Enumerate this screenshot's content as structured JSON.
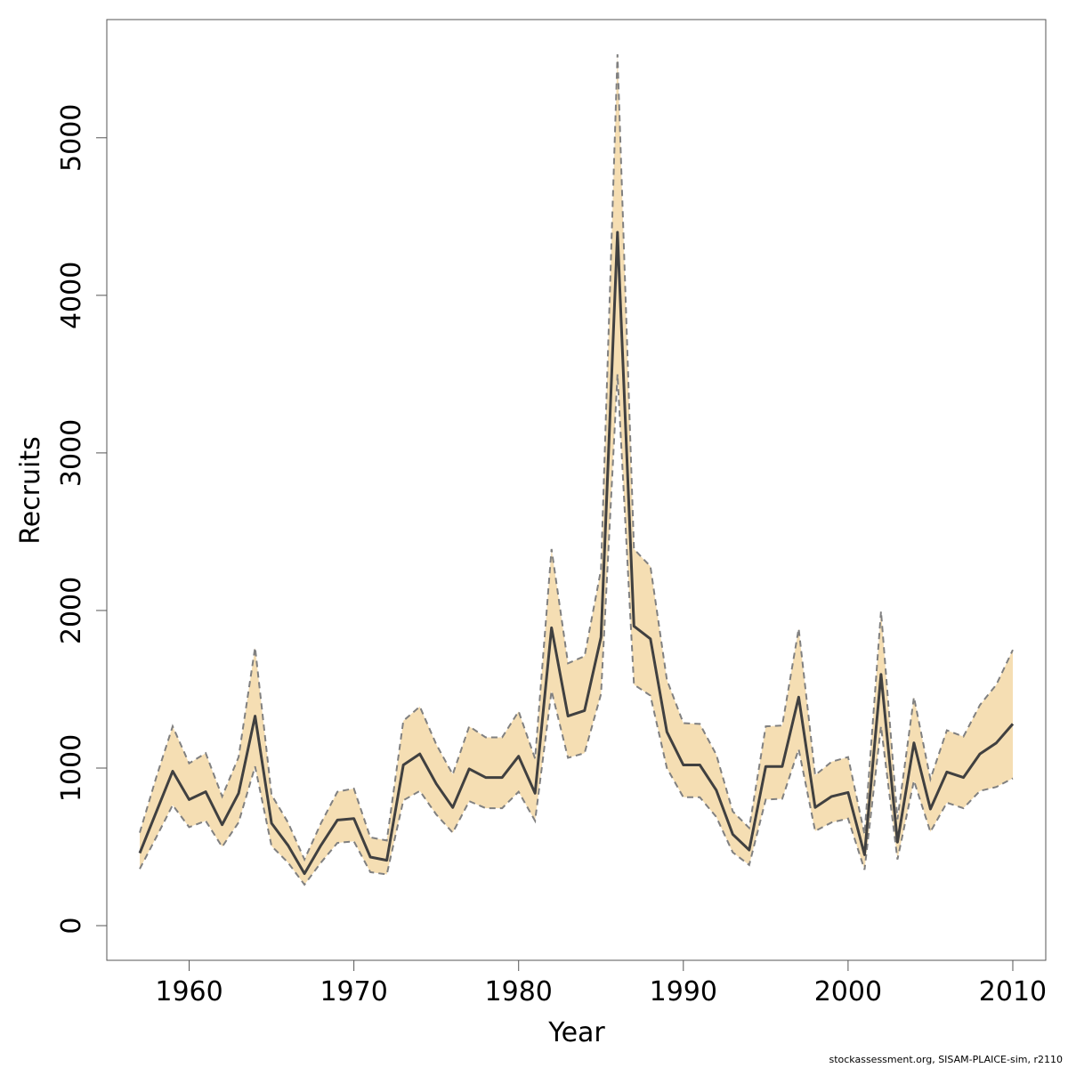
{
  "footer": {
    "source_text": "stockassessment.org, SISAM-PLAICE-sim, r2110"
  },
  "chart_data": {
    "type": "line",
    "xlabel": "Year",
    "ylabel": "Recruits",
    "xlim": [
      1955,
      2012
    ],
    "ylim": [
      -220,
      5750
    ],
    "x_ticks": [
      1960,
      1970,
      1980,
      1990,
      2000,
      2010
    ],
    "y_ticks": [
      0,
      1000,
      2000,
      3000,
      4000,
      5000
    ],
    "grid": false,
    "colors": {
      "band": "#f5deb3",
      "band_edge": "#808080",
      "line": "#404040",
      "axis": "#555555"
    },
    "x": [
      1957,
      1958,
      1959,
      1960,
      1961,
      1962,
      1963,
      1964,
      1965,
      1966,
      1967,
      1968,
      1969,
      1970,
      1971,
      1972,
      1973,
      1974,
      1975,
      1976,
      1977,
      1978,
      1979,
      1980,
      1981,
      1982,
      1983,
      1984,
      1985,
      1986,
      1987,
      1988,
      1989,
      1990,
      1991,
      1992,
      1993,
      1994,
      1995,
      1996,
      1997,
      1998,
      1999,
      2000,
      2001,
      2002,
      2003,
      2004,
      2005,
      2006,
      2007,
      2008,
      2009,
      2010
    ],
    "series": [
      {
        "values": [
          460,
          720,
          980,
          800,
          850,
          640,
          840,
          1330,
          650,
          510,
          330,
          510,
          670,
          680,
          435,
          415,
          1020,
          1090,
          900,
          750,
          995,
          940,
          940,
          1075,
          840,
          1890,
          1330,
          1365,
          1830,
          4400,
          1900,
          1820,
          1230,
          1020,
          1020,
          860,
          580,
          480,
          1010,
          1010,
          1450,
          750,
          820,
          845,
          450,
          1595,
          530,
          1160,
          740,
          975,
          940,
          1090,
          1160,
          1280
        ]
      },
      {
        "values": [
          590,
          940,
          1265,
          1030,
          1095,
          820,
          1070,
          1765,
          830,
          655,
          420,
          650,
          850,
          870,
          560,
          540,
          1300,
          1390,
          1150,
          960,
          1265,
          1195,
          1195,
          1360,
          1060,
          2390,
          1665,
          1710,
          2260,
          5530,
          2390,
          2280,
          1560,
          1285,
          1280,
          1085,
          725,
          620,
          1265,
          1270,
          1885,
          955,
          1040,
          1070,
          580,
          1995,
          675,
          1450,
          930,
          1240,
          1200,
          1400,
          1530,
          1750
        ]
      },
      {
        "values": [
          360,
          560,
          765,
          625,
          665,
          500,
          655,
          1010,
          505,
          400,
          260,
          400,
          525,
          535,
          340,
          325,
          795,
          855,
          705,
          590,
          790,
          745,
          745,
          850,
          665,
          1490,
          1065,
          1095,
          1470,
          3500,
          1530,
          1460,
          1000,
          815,
          815,
          690,
          465,
          385,
          800,
          805,
          1120,
          600,
          655,
          680,
          355,
          1265,
          420,
          920,
          595,
          780,
          745,
          855,
          880,
          935
        ]
      }
    ]
  }
}
